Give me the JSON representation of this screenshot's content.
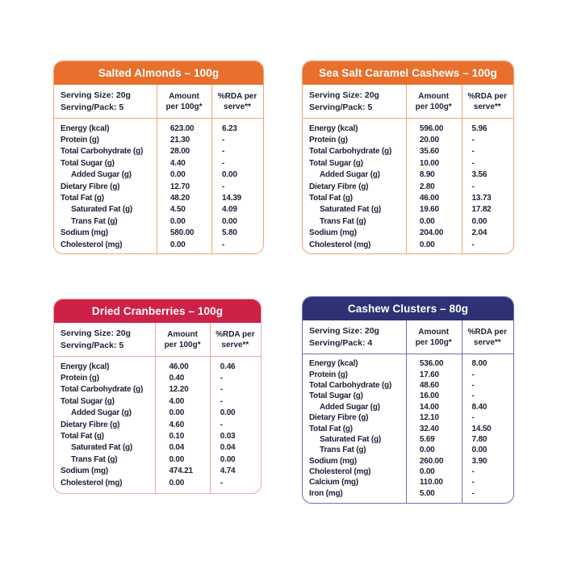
{
  "page": {
    "background": "#FFFFFF",
    "text_color": "#1E1E38"
  },
  "cards": [
    {
      "title": "Salted Almonds – 100g",
      "theme": {
        "header": "#E8702C",
        "border": "#F2A377"
      },
      "serving": {
        "size": "Serving Size: 20g",
        "pack": "Serving/Pack: 5"
      },
      "columns": {
        "amount": "Amount\nper 100g*",
        "rda": "%RDA per\nserve**"
      },
      "rows": [
        {
          "label": "Energy (kcal)",
          "indent": false,
          "amount": "623.00",
          "rda": "6.23"
        },
        {
          "label": "Protein (g)",
          "indent": false,
          "amount": "21.30",
          "rda": "-"
        },
        {
          "label": "Total Carbohydrate (g)",
          "indent": false,
          "amount": "28.00",
          "rda": "-"
        },
        {
          "label": "Total Sugar (g)",
          "indent": false,
          "amount": "4.40",
          "rda": "-"
        },
        {
          "label": "Added Sugar (g)",
          "indent": true,
          "amount": "0.00",
          "rda": "0.00"
        },
        {
          "label": "Dietary Fibre (g)",
          "indent": false,
          "amount": "12.70",
          "rda": "-"
        },
        {
          "label": "Total Fat (g)",
          "indent": false,
          "amount": "48.20",
          "rda": "14.39"
        },
        {
          "label": "Saturated Fat (g)",
          "indent": true,
          "amount": "4.50",
          "rda": "4.09"
        },
        {
          "label": "Trans Fat (g)",
          "indent": true,
          "amount": "0.00",
          "rda": "0.00"
        },
        {
          "label": "Sodium (mg)",
          "indent": false,
          "amount": "580.00",
          "rda": "5.80"
        },
        {
          "label": "Cholesterol (mg)",
          "indent": false,
          "amount": "0.00",
          "rda": "-"
        }
      ]
    },
    {
      "title": "Sea Salt Caramel Cashews – 100g",
      "theme": {
        "header": "#E8702C",
        "border": "#F2A377"
      },
      "serving": {
        "size": "Serving Size: 20g",
        "pack": "Serving/Pack: 5"
      },
      "columns": {
        "amount": "Amount\nper 100g*",
        "rda": "%RDA per\nserve**"
      },
      "rows": [
        {
          "label": "Energy (kcal)",
          "indent": false,
          "amount": "596.00",
          "rda": "5.96"
        },
        {
          "label": "Protein (g)",
          "indent": false,
          "amount": "20.00",
          "rda": "-"
        },
        {
          "label": "Total Carbohydrate (g)",
          "indent": false,
          "amount": "35.60",
          "rda": "-"
        },
        {
          "label": "Total Sugar (g)",
          "indent": false,
          "amount": "10.00",
          "rda": "-"
        },
        {
          "label": "Added Sugar (g)",
          "indent": true,
          "amount": "8.90",
          "rda": "3.56"
        },
        {
          "label": "Dietary Fibre (g)",
          "indent": false,
          "amount": "2.80",
          "rda": "-"
        },
        {
          "label": "Total Fat (g)",
          "indent": false,
          "amount": "46.00",
          "rda": "13.73"
        },
        {
          "label": "Saturated Fat (g)",
          "indent": true,
          "amount": "19.60",
          "rda": "17.82"
        },
        {
          "label": "Trans Fat (g)",
          "indent": true,
          "amount": "0.00",
          "rda": "0.00"
        },
        {
          "label": "Sodium (mg)",
          "indent": false,
          "amount": "204.00",
          "rda": "2.04"
        },
        {
          "label": "Cholesterol (mg)",
          "indent": false,
          "amount": "0.00",
          "rda": "-"
        }
      ]
    },
    {
      "title": "Dried Cranberries – 100g",
      "theme": {
        "header": "#CE2147",
        "border": "#F0A3AC"
      },
      "serving": {
        "size": "Serving Size: 20g",
        "pack": "Serving/Pack: 5"
      },
      "columns": {
        "amount": "Amount\nper 100g*",
        "rda": "%RDA per\nserve**"
      },
      "rows": [
        {
          "label": "Energy (kcal)",
          "indent": false,
          "amount": "46.00",
          "rda": "0.46"
        },
        {
          "label": "Protein (g)",
          "indent": false,
          "amount": "0.40",
          "rda": "-"
        },
        {
          "label": "Total Carbohydrate (g)",
          "indent": false,
          "amount": "12.20",
          "rda": "-"
        },
        {
          "label": "Total Sugar (g)",
          "indent": false,
          "amount": "4.00",
          "rda": "-"
        },
        {
          "label": "Added Sugar (g)",
          "indent": true,
          "amount": "0.00",
          "rda": "0.00"
        },
        {
          "label": "Dietary Fibre (g)",
          "indent": false,
          "amount": "4.60",
          "rda": "-"
        },
        {
          "label": "Total Fat (g)",
          "indent": false,
          "amount": "0.10",
          "rda": "0.03"
        },
        {
          "label": "Saturated Fat (g)",
          "indent": true,
          "amount": "0.04",
          "rda": "0.04"
        },
        {
          "label": "Trans Fat (g)",
          "indent": true,
          "amount": "0.00",
          "rda": "0.00"
        },
        {
          "label": "Sodium (mg)",
          "indent": false,
          "amount": "474.21",
          "rda": "4.74"
        },
        {
          "label": "Cholesterol (mg)",
          "indent": false,
          "amount": "0.00",
          "rda": "-"
        }
      ]
    },
    {
      "title": "Cashew Clusters – 80g",
      "theme": {
        "header": "#2E3274",
        "border": "#6B74AE"
      },
      "serving": {
        "size": "Serving Size: 20g",
        "pack": "Serving/Pack: 4"
      },
      "columns": {
        "amount": "Amount\nper 100g*",
        "rda": "%RDA per\nserve**"
      },
      "rows": [
        {
          "label": "Energy (kcal)",
          "indent": false,
          "amount": "536.00",
          "rda": "8.00"
        },
        {
          "label": "Protein (g)",
          "indent": false,
          "amount": "17.60",
          "rda": "-"
        },
        {
          "label": "Total Carbohydrate (g)",
          "indent": false,
          "amount": "48.60",
          "rda": "-"
        },
        {
          "label": "Total Sugar (g)",
          "indent": false,
          "amount": "16.00",
          "rda": "-"
        },
        {
          "label": "Added Sugar (g)",
          "indent": true,
          "amount": "14.00",
          "rda": "8.40"
        },
        {
          "label": "Dietary Fibre (g)",
          "indent": false,
          "amount": "12.10",
          "rda": "-"
        },
        {
          "label": "Total Fat (g)",
          "indent": false,
          "amount": "32.40",
          "rda": "14.50"
        },
        {
          "label": "Saturated Fat (g)",
          "indent": true,
          "amount": "5.69",
          "rda": "7.80"
        },
        {
          "label": "Trans Fat (g)",
          "indent": true,
          "amount": "0.00",
          "rda": "0.00"
        },
        {
          "label": "Sodium (mg)",
          "indent": false,
          "amount": "260.00",
          "rda": "3.90"
        },
        {
          "label": "Cholesterol (mg)",
          "indent": false,
          "amount": "0.00",
          "rda": "-"
        },
        {
          "label": "Calcium (mg)",
          "indent": false,
          "amount": "110.00",
          "rda": "-"
        },
        {
          "label": "Iron (mg)",
          "indent": false,
          "amount": "5.00",
          "rda": "-"
        }
      ]
    }
  ]
}
